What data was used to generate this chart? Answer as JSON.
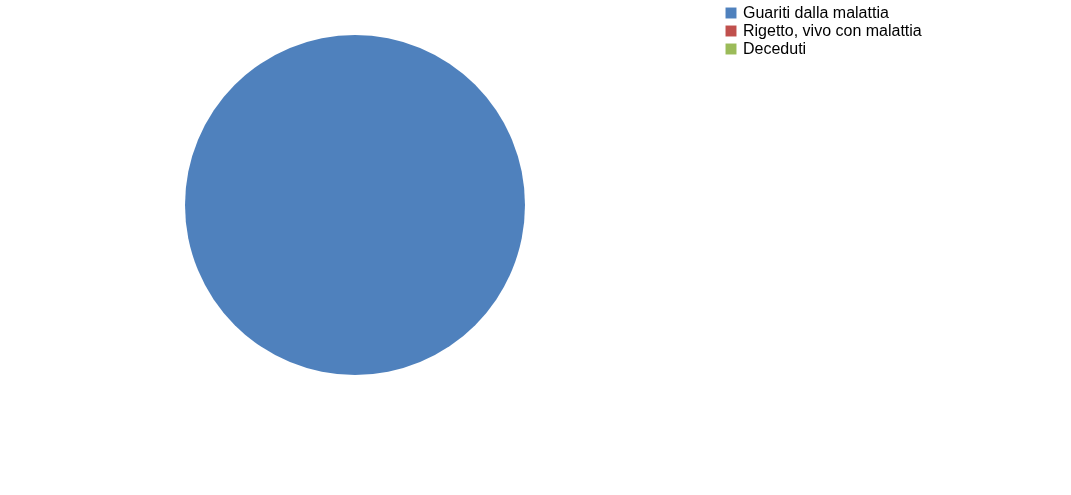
{
  "chart_data": {
    "type": "pie",
    "categories": [
      "Guariti dalla malattia",
      "Rigetto, vivo con malattia",
      "Deceduti"
    ],
    "values": [
      100,
      0,
      0
    ],
    "colors": [
      "#4f81bd",
      "#c0504d",
      "#9bbb59"
    ],
    "legend": "right"
  }
}
